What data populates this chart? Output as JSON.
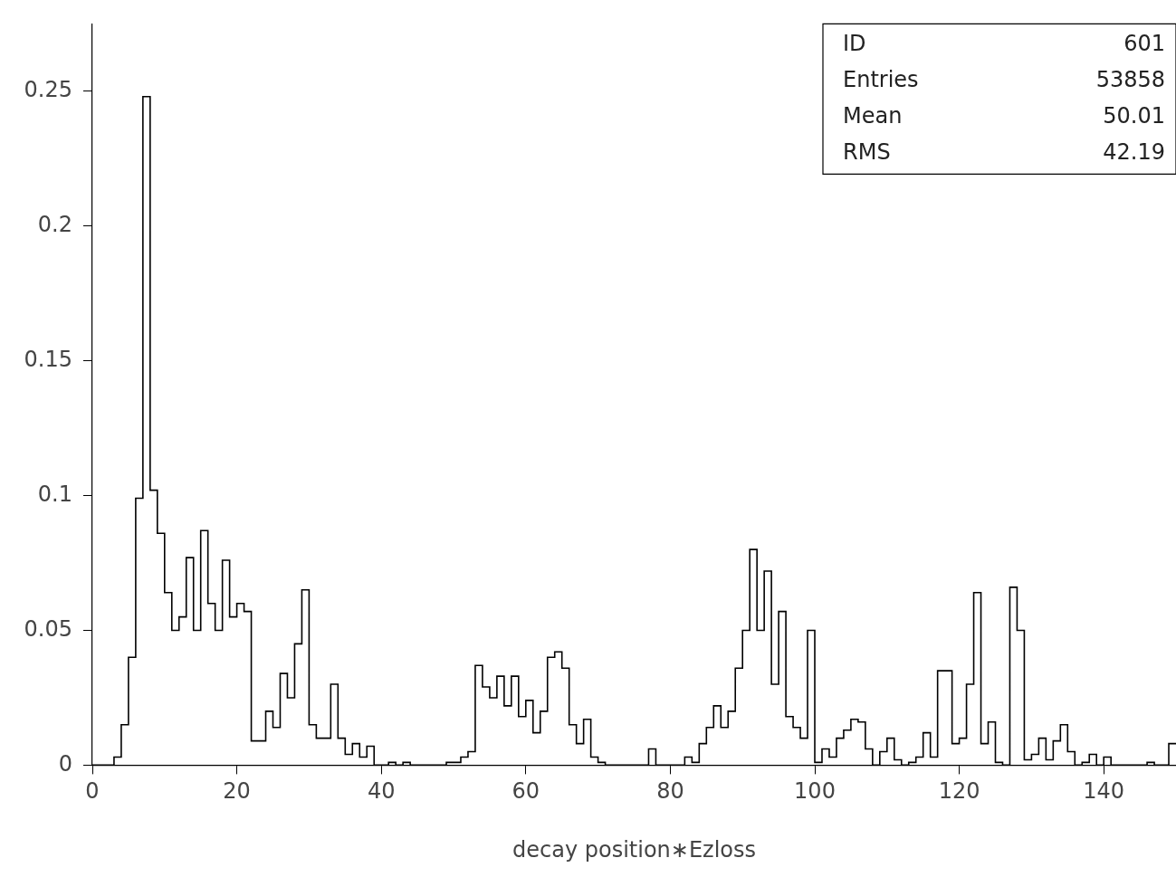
{
  "chart_data": {
    "type": "histogram",
    "xlabel": "decay position∗Ezloss",
    "color": "#000000",
    "bins": [
      0,
      1,
      2,
      3,
      4,
      5,
      6,
      7,
      8,
      9,
      10,
      11,
      12,
      13,
      14,
      15,
      16,
      17,
      18,
      19,
      20,
      21,
      22,
      23,
      24,
      25,
      26,
      27,
      28,
      29,
      30,
      31,
      32,
      33,
      34,
      35,
      36,
      37,
      38,
      39,
      40,
      41,
      42,
      43,
      44,
      45,
      46,
      47,
      48,
      49,
      50,
      51,
      52,
      53,
      54,
      55,
      56,
      57,
      58,
      59,
      60,
      61,
      62,
      63,
      64,
      65,
      66,
      67,
      68,
      69,
      70,
      71,
      72,
      73,
      74,
      75,
      76,
      77,
      78,
      79,
      80,
      81,
      82,
      83,
      84,
      85,
      86,
      87,
      88,
      89,
      90,
      91,
      92,
      93,
      94,
      95,
      96,
      97,
      98,
      99,
      100,
      101,
      102,
      103,
      104,
      105,
      106,
      107,
      108,
      109,
      110,
      111,
      112,
      113,
      114,
      115,
      116,
      117,
      118,
      119,
      120,
      121,
      122,
      123,
      124,
      125,
      126,
      127,
      128,
      129,
      130,
      131,
      132,
      133,
      134,
      135,
      136,
      137,
      138,
      139,
      140,
      141,
      142,
      143,
      144,
      145,
      146,
      147,
      148,
      149,
      150
    ],
    "values": [
      0,
      0,
      0,
      0.003,
      0.015,
      0.04,
      0.099,
      0.248,
      0.102,
      0.086,
      0.064,
      0.05,
      0.055,
      0.077,
      0.05,
      0.087,
      0.06,
      0.05,
      0.076,
      0.055,
      0.06,
      0.057,
      0.009,
      0.009,
      0.02,
      0.014,
      0.034,
      0.025,
      0.045,
      0.065,
      0.015,
      0.01,
      0.01,
      0.03,
      0.01,
      0.004,
      0.008,
      0.003,
      0.007,
      0,
      0,
      0.001,
      0,
      0.001,
      0,
      0,
      0,
      0,
      0,
      0.001,
      0.001,
      0.003,
      0.005,
      0.037,
      0.029,
      0.025,
      0.033,
      0.022,
      0.033,
      0.018,
      0.024,
      0.012,
      0.02,
      0.04,
      0.042,
      0.036,
      0.015,
      0.008,
      0.017,
      0.003,
      0.001,
      0,
      0,
      0,
      0,
      0,
      0,
      0.006,
      0,
      0,
      0,
      0,
      0.003,
      0.001,
      0.008,
      0.014,
      0.022,
      0.014,
      0.02,
      0.036,
      0.05,
      0.08,
      0.05,
      0.072,
      0.03,
      0.057,
      0.018,
      0.014,
      0.01,
      0.05,
      0.001,
      0.006,
      0.003,
      0.01,
      0.013,
      0.017,
      0.016,
      0.006,
      0,
      0.005,
      0.01,
      0.002,
      0,
      0.001,
      0.003,
      0.012,
      0.003,
      0.035,
      0.035,
      0.008,
      0.01,
      0.03,
      0.064,
      0.008,
      0.016,
      0.001,
      0,
      0.066,
      0.05,
      0.002,
      0.004,
      0.01,
      0.002,
      0.009,
      0.015,
      0.005,
      0,
      0.001,
      0.004,
      0,
      0.003,
      0,
      0,
      0,
      0,
      0,
      0.001,
      0,
      0,
      0.008
    ],
    "xlim": [
      0,
      150
    ],
    "xticks": [
      0,
      20,
      40,
      60,
      80,
      100,
      120,
      140
    ],
    "ylim": [
      0,
      0.275
    ],
    "yticks": [
      0,
      0.05,
      0.1,
      0.15,
      0.2,
      0.25
    ],
    "grid": false,
    "legend": false,
    "annotations": [
      "ID",
      "601",
      "Entries",
      "53858",
      "Mean",
      "50.01",
      "RMS",
      "42.19"
    ]
  }
}
